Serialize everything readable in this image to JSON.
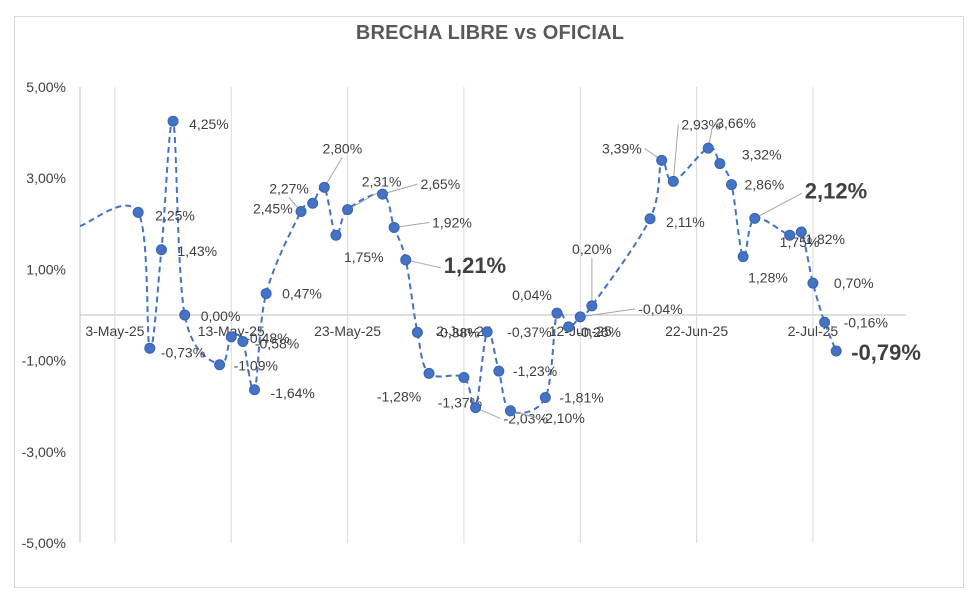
{
  "chart_data": {
    "type": "line",
    "title": "BRECHA LIBRE vs OFICIAL",
    "ylim": [
      -5,
      5
    ],
    "y_ticks": [
      "5,00%",
      "3,00%",
      "1,00%",
      "-1,00%",
      "-3,00%",
      "-5,00%"
    ],
    "x_range": [
      "2025-04-30",
      "2025-07-10"
    ],
    "x_ticks": [
      {
        "date": "2025-05-03",
        "label": "3-May-25"
      },
      {
        "date": "2025-05-13",
        "label": "13-May-25"
      },
      {
        "date": "2025-05-23",
        "label": "23-May-25"
      },
      {
        "date": "2025-06-02",
        "label": "2-Jun-25"
      },
      {
        "date": "2025-06-12",
        "label": "12-Jun-25"
      },
      {
        "date": "2025-06-22",
        "label": "22-Jun-25"
      },
      {
        "date": "2025-07-02",
        "label": "2-Jul-25"
      }
    ],
    "series": [
      {
        "color": "#4472c4",
        "line_style": "dashed",
        "points": [
          {
            "date": "2025-05-05",
            "value": 2.25,
            "label": "2,25%"
          },
          {
            "date": "2025-05-06",
            "value": -0.73,
            "label": "-0,73%"
          },
          {
            "date": "2025-05-07",
            "value": 1.43,
            "label": "1,43%"
          },
          {
            "date": "2025-05-08",
            "value": 4.25,
            "label": "4,25%"
          },
          {
            "date": "2025-05-09",
            "value": 0.0,
            "label": "0,00%"
          },
          {
            "date": "2025-05-12",
            "value": -1.09,
            "label": "-1,09%"
          },
          {
            "date": "2025-05-13",
            "value": -0.48,
            "label": "-0,48%"
          },
          {
            "date": "2025-05-14",
            "value": -0.58,
            "label": "-0,58%"
          },
          {
            "date": "2025-05-15",
            "value": -1.64,
            "label": "-1,64%"
          },
          {
            "date": "2025-05-16",
            "value": 0.47,
            "label": "0,47%"
          },
          {
            "date": "2025-05-19",
            "value": 2.27,
            "label": "2,27%"
          },
          {
            "date": "2025-05-20",
            "value": 2.45,
            "label": "2,45%"
          },
          {
            "date": "2025-05-21",
            "value": 2.8,
            "label": "2,80%"
          },
          {
            "date": "2025-05-22",
            "value": 1.75,
            "label": "1,75%"
          },
          {
            "date": "2025-05-23",
            "value": 2.31,
            "label": "2,31%"
          },
          {
            "date": "2025-05-26",
            "value": 2.65,
            "label": "2,65%"
          },
          {
            "date": "2025-05-27",
            "value": 1.92,
            "label": "1,92%"
          },
          {
            "date": "2025-05-28",
            "value": 1.21,
            "label": "1,21%"
          },
          {
            "date": "2025-05-29",
            "value": -0.38,
            "label": "-0,38%"
          },
          {
            "date": "2025-05-30",
            "value": -1.28,
            "label": "-1,28%"
          },
          {
            "date": "2025-06-02",
            "value": -1.37,
            "label": "-1,37%"
          },
          {
            "date": "2025-06-03",
            "value": -2.03,
            "label": "-2,03%"
          },
          {
            "date": "2025-06-04",
            "value": -0.37,
            "label": "-0,37%"
          },
          {
            "date": "2025-06-05",
            "value": -1.23,
            "label": "-1,23%"
          },
          {
            "date": "2025-06-06",
            "value": -2.1,
            "label": "-2,10%"
          },
          {
            "date": "2025-06-09",
            "value": -1.81,
            "label": "-1,81%"
          },
          {
            "date": "2025-06-10",
            "value": 0.04,
            "label": "0,04%"
          },
          {
            "date": "2025-06-11",
            "value": -0.26,
            "label": "-0,26%"
          },
          {
            "date": "2025-06-12",
            "value": -0.04,
            "label": "-0,04%"
          },
          {
            "date": "2025-06-13",
            "value": 0.2,
            "label": "0,20%"
          },
          {
            "date": "2025-06-18",
            "value": 2.11,
            "label": "2,11%"
          },
          {
            "date": "2025-06-19",
            "value": 3.39,
            "label": "3,39%"
          },
          {
            "date": "2025-06-20",
            "value": 2.93,
            "label": "2,93%"
          },
          {
            "date": "2025-06-23",
            "value": 3.66,
            "label": "3,66%"
          },
          {
            "date": "2025-06-24",
            "value": 3.32,
            "label": "3,32%"
          },
          {
            "date": "2025-06-25",
            "value": 2.86,
            "label": "2,86%"
          },
          {
            "date": "2025-06-26",
            "value": 1.28,
            "label": "1,28%"
          },
          {
            "date": "2025-06-27",
            "value": 2.12,
            "label": "2,12%"
          },
          {
            "date": "2025-06-30",
            "value": 1.75,
            "label": "1,75%"
          },
          {
            "date": "2025-07-01",
            "value": 1.82,
            "label": "1,82%"
          },
          {
            "date": "2025-07-02",
            "value": 0.7,
            "label": "0,70%"
          },
          {
            "date": "2025-07-03",
            "value": -0.16,
            "label": "-0,16%"
          },
          {
            "date": "2025-07-04",
            "value": -0.79,
            "label": "-0,79%"
          }
        ]
      }
    ],
    "highlighted_labels": [
      "1,21%",
      "2,12%",
      "-0,79%"
    ],
    "grid": "vertical",
    "legend": "none"
  }
}
